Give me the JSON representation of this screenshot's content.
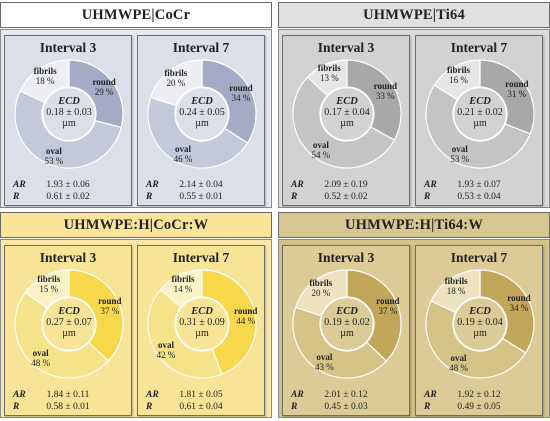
{
  "chart_data": [
    {
      "type": "pie",
      "group": "UHMWPE|CoCr",
      "colors": {
        "header_bg": "#ffffff",
        "body_bg": "#e8eaf1",
        "panel_bg": "#dcdfe8",
        "round": "#a3acc4",
        "oval": "#c3c9da",
        "fibrils": "#eceef4",
        "stroke": "#ffffff"
      },
      "panels": [
        {
          "title": "Interval 3",
          "labels": [
            "round",
            "oval",
            "fibrils"
          ],
          "values": [
            29,
            53,
            18
          ],
          "ecd_label": "ECD",
          "ecd_value": "0.18 ± 0.03",
          "ecd_unit": "µm",
          "ar_label": "AR",
          "ar_value": "1.93 ± 0.06",
          "r_label": "R",
          "r_value": "0.61 ± 0.02"
        },
        {
          "title": "Interval 7",
          "labels": [
            "round",
            "oval",
            "fibrils"
          ],
          "values": [
            34,
            46,
            20
          ],
          "ecd_label": "ECD",
          "ecd_value": "0.24 ± 0.05",
          "ecd_unit": "µm",
          "ar_label": "AR",
          "ar_value": "2.14 ± 0.04",
          "r_label": "R",
          "r_value": "0.55 ± 0.01"
        }
      ]
    },
    {
      "type": "pie",
      "group": "UHMWPE|Ti64",
      "colors": {
        "header_bg": "#e0e0e0",
        "body_bg": "#dcdcdc",
        "panel_bg": "#d2d2d2",
        "round": "#a8a8a8",
        "oval": "#c4c4c4",
        "fibrils": "#e6e6e6",
        "stroke": "#ffffff"
      },
      "panels": [
        {
          "title": "Interval 3",
          "labels": [
            "round",
            "oval",
            "fibrils"
          ],
          "values": [
            33,
            54,
            13
          ],
          "ecd_label": "ECD",
          "ecd_value": "0.17 ± 0.04",
          "ecd_unit": "µm",
          "ar_label": "AR",
          "ar_value": "2.09 ± 0.19",
          "r_label": "R",
          "r_value": "0.52 ± 0.02"
        },
        {
          "title": "Interval 7",
          "labels": [
            "round",
            "oval",
            "fibrils"
          ],
          "values": [
            31,
            53,
            16
          ],
          "ecd_label": "ECD",
          "ecd_value": "0.21 ± 0.02",
          "ecd_unit": "µm",
          "ar_label": "AR",
          "ar_value": "1.93 ± 0.07",
          "r_label": "R",
          "r_value": "0.53 ± 0.04"
        }
      ]
    },
    {
      "type": "pie",
      "group": "UHMWPE:H|CoCr:W",
      "colors": {
        "header_bg": "#fbe39a",
        "body_bg": "#fbe9a8",
        "panel_bg": "#f8e496",
        "round": "#f7d84a",
        "oval": "#f5e38a",
        "fibrils": "#fbf2c6",
        "stroke": "#ffffff"
      },
      "panels": [
        {
          "title": "Interval 3",
          "labels": [
            "round",
            "oval",
            "fibrils"
          ],
          "values": [
            37,
            48,
            15
          ],
          "ecd_label": "ECD",
          "ecd_value": "0.27 ± 0.07",
          "ecd_unit": "µm",
          "ar_label": "AR",
          "ar_value": "1.84 ± 0.11",
          "r_label": "R",
          "r_value": "0.58 ± 0.01"
        },
        {
          "title": "Interval 7",
          "labels": [
            "round",
            "oval",
            "fibrils"
          ],
          "values": [
            44,
            42,
            14
          ],
          "ecd_label": "ECD",
          "ecd_value": "0.31 ± 0.09",
          "ecd_unit": "µm",
          "ar_label": "AR",
          "ar_value": "1.81 ± 0.05",
          "r_label": "R",
          "r_value": "0.61 ± 0.04"
        }
      ]
    },
    {
      "type": "pie",
      "group": "UHMWPE:H|Ti64:W",
      "colors": {
        "header_bg": "#d8c691",
        "body_bg": "#d3c18a",
        "panel_bg": "#dccb96",
        "round": "#c2a65a",
        "oval": "#d5c287",
        "fibrils": "#eee3c0",
        "stroke": "#ffffff"
      },
      "panels": [
        {
          "title": "Interval 3",
          "labels": [
            "round",
            "oval",
            "fibrils"
          ],
          "values": [
            37,
            43,
            20
          ],
          "ecd_label": "ECD",
          "ecd_value": "0.19 ± 0.02",
          "ecd_unit": "µm",
          "ar_label": "AR",
          "ar_value": "2.01 ± 0.12",
          "r_label": "R",
          "r_value": "0.45 ± 0.03"
        },
        {
          "title": "Interval 7",
          "labels": [
            "round",
            "oval",
            "fibrils"
          ],
          "values": [
            34,
            48,
            18
          ],
          "ecd_label": "ECD",
          "ecd_value": "0.19 ± 0.04",
          "ecd_unit": "µm",
          "ar_label": "AR",
          "ar_value": "1.92 ± 0.12",
          "r_label": "R",
          "r_value": "0.49 ± 0.05"
        }
      ]
    }
  ]
}
